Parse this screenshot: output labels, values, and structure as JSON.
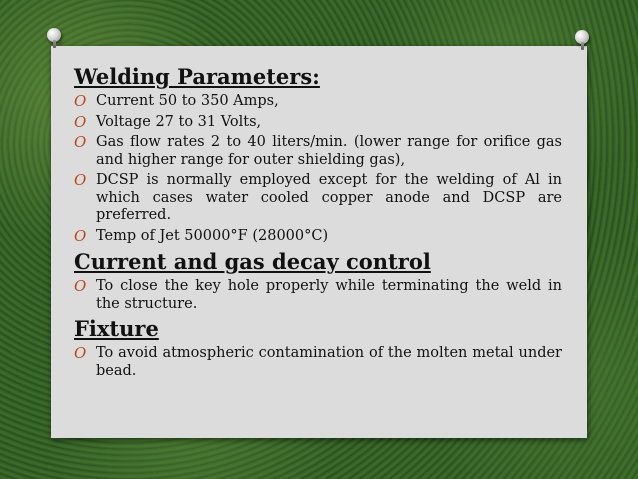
{
  "sections": [
    {
      "heading": "Welding Parameters:",
      "bullets": [
        "Current 50 to 350 Amps,",
        "Voltage 27 to 31 Volts,",
        "Gas flow rates 2 to 40 liters/min. (lower range for orifice gas and higher range for outer shielding gas),",
        "DCSP is normally employed except for the welding of Al in which cases water cooled copper anode and DCSP are preferred.",
        "Temp of Jet 50000°F (28000°C)"
      ]
    },
    {
      "heading": "Current and gas decay control",
      "bullets": [
        "To close the key hole properly while terminating the weld in the structure."
      ]
    },
    {
      "heading": "Fixture",
      "bullets": [
        "To avoid atmospheric contamination of the molten metal under bead."
      ]
    }
  ],
  "bullet_marker": "O",
  "colors": {
    "card": "#dcdcdc",
    "marker": "#b84a1c",
    "background": "#335e26"
  }
}
